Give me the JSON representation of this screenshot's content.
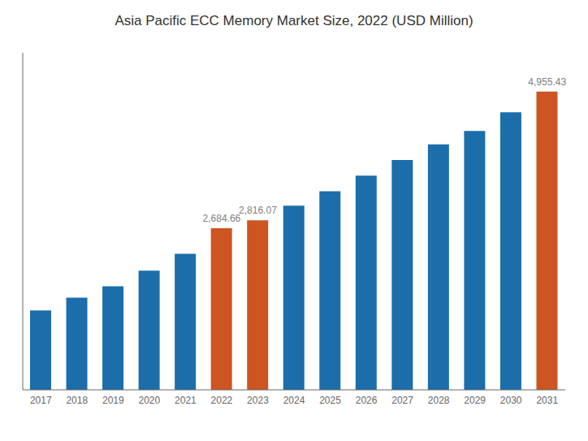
{
  "chart_data": {
    "type": "bar",
    "title": "Asia Pacific ECC Memory Market Size, 2022 (USD Million)",
    "categories": [
      "2017",
      "2018",
      "2019",
      "2020",
      "2021",
      "2022",
      "2023",
      "2024",
      "2025",
      "2026",
      "2027",
      "2028",
      "2029",
      "2030",
      "2031"
    ],
    "values": [
      1320,
      1530,
      1720,
      1980,
      2260,
      2684.66,
      2816.07,
      3060,
      3300,
      3560,
      3820,
      4080,
      4300,
      4610,
      4955.43
    ],
    "colors": [
      "#1b6eaa",
      "#1b6eaa",
      "#1b6eaa",
      "#1b6eaa",
      "#1b6eaa",
      "#cc5522",
      "#cc5522",
      "#1b6eaa",
      "#1b6eaa",
      "#1b6eaa",
      "#1b6eaa",
      "#1b6eaa",
      "#1b6eaa",
      "#1b6eaa",
      "#cc5522"
    ],
    "ylim": [
      0,
      5600
    ],
    "tick_labels": "x",
    "annotations": [
      {
        "x": "2022",
        "y": 2684.66,
        "text": "2,684.66"
      },
      {
        "x": "2023",
        "y": 2816.07,
        "text": "2,816.07"
      },
      {
        "x": "2031",
        "y": 4955.43,
        "text": "4,955.43"
      }
    ]
  }
}
